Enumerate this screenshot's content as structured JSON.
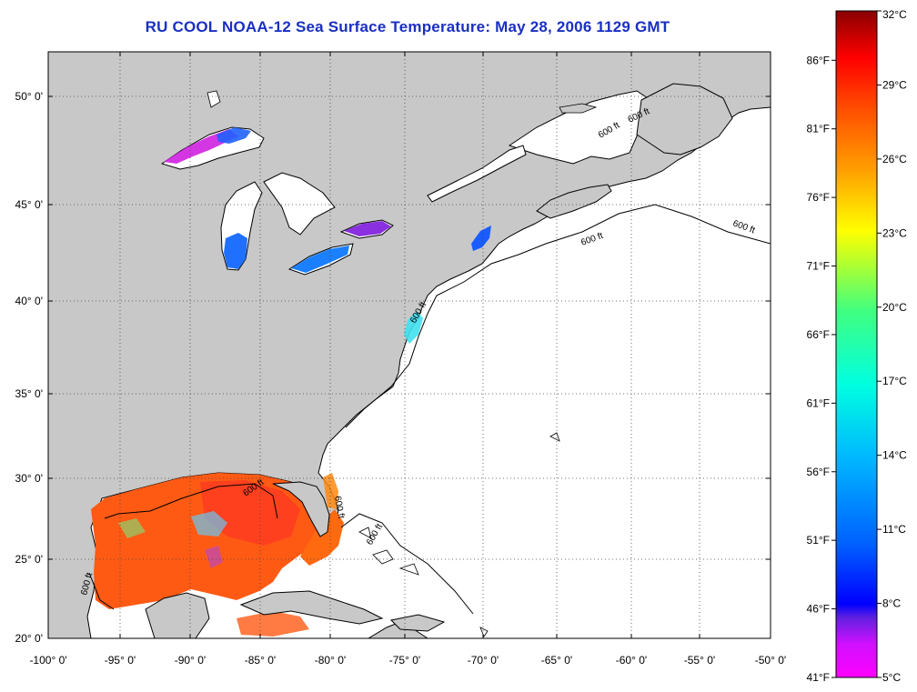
{
  "title": "RU COOL  NOAA-12  Sea Surface Temperature:  May 28, 2006 1129 GMT",
  "map": {
    "lat_labels": [
      "50° 0'",
      "45° 0'",
      "40° 0'",
      "35° 0'",
      "30° 0'",
      "25° 0'",
      "20° 0'"
    ],
    "lon_labels": [
      "-100° 0'",
      "-95° 0'",
      "-90° 0'",
      "-85° 0'",
      "-80° 0'",
      "-75° 0'",
      "-70° 0'",
      "-65° 0'",
      "-60° 0'",
      "-55° 0'",
      "-50° 0'"
    ],
    "contour_label": "600 ft",
    "colors": {
      "land": "#c8c8c8",
      "ocean_nodata": "#ffffff",
      "gulf_warm": "#ff5a14",
      "gulf_hot": "#ff3c1e",
      "lake_cold": "#1e6cff"
    }
  },
  "colorbar": {
    "celsius_labels": [
      "32°C",
      "29°C",
      "26°C",
      "23°C",
      "20°C",
      "17°C",
      "14°C",
      "11°C",
      "8°C",
      "5°C"
    ],
    "fahrenheit_labels": [
      "86°F",
      "81°F",
      "76°F",
      "71°F",
      "66°F",
      "61°F",
      "56°F",
      "51°F",
      "46°F",
      "41°F"
    ],
    "celsius_values": [
      32,
      29,
      26,
      23,
      20,
      17,
      14,
      11,
      8,
      5
    ],
    "fahrenheit_values": [
      86,
      81,
      76,
      71,
      66,
      61,
      56,
      51,
      46,
      41
    ],
    "stops": [
      "#ff00ff",
      "#8a2be2",
      "#0000ff",
      "#00a0ff",
      "#00ffe0",
      "#40ff80",
      "#b0ff20",
      "#ffff00",
      "#ffa000",
      "#ff5000",
      "#ff0000",
      "#8a0000"
    ]
  }
}
